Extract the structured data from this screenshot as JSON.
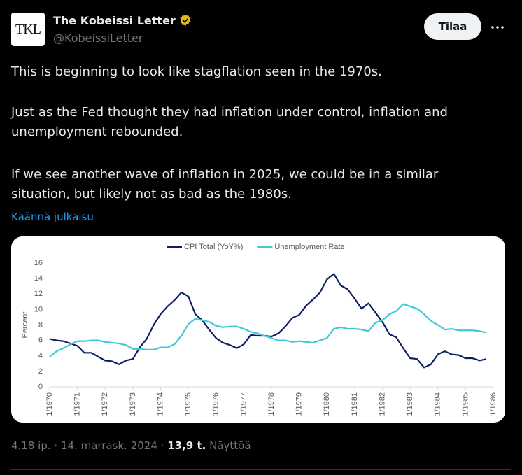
{
  "tweet": {
    "avatar_text": "TKL",
    "author": "The Kobeissi Letter",
    "handle": "@KobeissiLetter",
    "follow_button": "Tilaa",
    "paragraphs": [
      "This is beginning to look like stagflation seen in the 1970s.",
      "Just as the Fed thought they had inflation under control, inflation and unemployment rebounded.",
      "If we see another wave of inflation in 2025, we could be in a similar situation, but likely not as bad as the 1980s."
    ],
    "translate": "Käännä julkaisu",
    "time": "4.18 ip.",
    "separator": "·",
    "date": "14. marrask. 2024",
    "views_count": "13,9 t.",
    "views_label": "Näyttöä"
  },
  "chart_data": {
    "type": "line",
    "y_label": "Percent",
    "legend": "top",
    "grid": false,
    "x": [
      1970,
      1970.25,
      1970.5,
      1970.75,
      1971,
      1971.25,
      1971.5,
      1971.75,
      1972,
      1972.25,
      1972.5,
      1972.75,
      1973,
      1973.25,
      1973.5,
      1973.75,
      1974,
      1974.25,
      1974.5,
      1974.75,
      1975,
      1975.25,
      1975.5,
      1975.75,
      1976,
      1976.25,
      1976.5,
      1976.75,
      1977,
      1977.25,
      1977.5,
      1977.75,
      1978,
      1978.25,
      1978.5,
      1978.75,
      1979,
      1979.25,
      1979.5,
      1979.75,
      1980,
      1980.25,
      1980.5,
      1980.75,
      1981,
      1981.25,
      1981.5,
      1981.75,
      1982,
      1982.25,
      1982.5,
      1982.75,
      1983,
      1983.25,
      1983.5,
      1983.75,
      1984,
      1984.25,
      1984.5,
      1984.75,
      1985,
      1985.25,
      1985.5,
      1985.75
    ],
    "series": [
      {
        "name": "CPI Total (YoY%)",
        "color": "#0d1f63",
        "values": [
          6.2,
          6.0,
          5.9,
          5.6,
          5.3,
          4.4,
          4.4,
          3.9,
          3.4,
          3.3,
          2.9,
          3.4,
          3.6,
          5.1,
          6.2,
          8.0,
          9.4,
          10.4,
          11.2,
          12.2,
          11.7,
          9.4,
          8.6,
          7.4,
          6.3,
          5.7,
          5.4,
          5.0,
          5.5,
          6.7,
          6.6,
          6.6,
          6.5,
          6.9,
          7.8,
          8.9,
          9.3,
          10.5,
          11.3,
          12.2,
          13.9,
          14.6,
          13.1,
          12.6,
          11.4,
          10.1,
          10.8,
          9.6,
          8.4,
          6.8,
          6.4,
          5.0,
          3.7,
          3.6,
          2.5,
          2.9,
          4.2,
          4.6,
          4.2,
          4.1,
          3.7,
          3.7,
          3.4,
          3.6
        ]
      },
      {
        "name": "Unemployment Rate",
        "color": "#3ec9d6",
        "values": [
          3.9,
          4.6,
          5.0,
          5.5,
          5.9,
          5.9,
          6.0,
          6.0,
          5.8,
          5.7,
          5.6,
          5.4,
          4.9,
          4.9,
          4.8,
          4.8,
          5.1,
          5.1,
          5.5,
          6.6,
          8.1,
          8.8,
          8.6,
          8.4,
          7.9,
          7.7,
          7.8,
          7.8,
          7.5,
          7.1,
          6.9,
          6.6,
          6.3,
          6.0,
          6.0,
          5.8,
          5.9,
          5.8,
          5.7,
          6.0,
          6.3,
          7.5,
          7.7,
          7.5,
          7.5,
          7.4,
          7.2,
          8.3,
          8.6,
          9.4,
          9.8,
          10.7,
          10.4,
          10.1,
          9.4,
          8.5,
          8.0,
          7.4,
          7.5,
          7.3,
          7.3,
          7.3,
          7.2,
          7.0
        ]
      }
    ],
    "xlim": [
      1970,
      1986
    ],
    "xticks": [
      {
        "value": 1970,
        "label": "1/1970"
      },
      {
        "value": 1971,
        "label": "1/1971"
      },
      {
        "value": 1972,
        "label": "1/1972"
      },
      {
        "value": 1973,
        "label": "1/1973"
      },
      {
        "value": 1974,
        "label": "1/1974"
      },
      {
        "value": 1975,
        "label": "1/1975"
      },
      {
        "value": 1976,
        "label": "1/1976"
      },
      {
        "value": 1977,
        "label": "1/1977"
      },
      {
        "value": 1978,
        "label": "1/1978"
      },
      {
        "value": 1979,
        "label": "1/1979"
      },
      {
        "value": 1980,
        "label": "1/1980"
      },
      {
        "value": 1981,
        "label": "1/1981"
      },
      {
        "value": 1982,
        "label": "1/1982"
      },
      {
        "value": 1983,
        "label": "1/1983"
      },
      {
        "value": 1984,
        "label": "1/1984"
      },
      {
        "value": 1985,
        "label": "1/1985"
      },
      {
        "value": 1986,
        "label": "1/1986"
      }
    ],
    "ylim": [
      0,
      16
    ],
    "yticks": [
      0,
      2,
      4,
      6,
      8,
      10,
      12,
      14,
      16
    ]
  }
}
